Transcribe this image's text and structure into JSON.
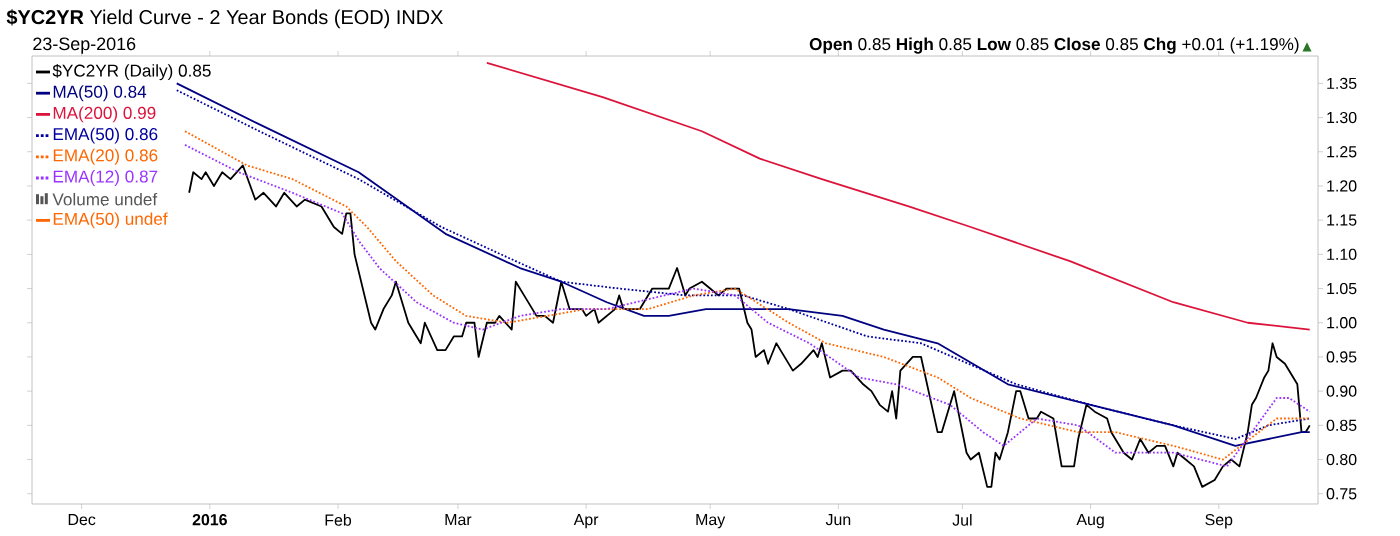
{
  "chart_data": {
    "type": "line",
    "title": "**$YC2YR** Yield Curve - 2 Year Bonds (EOD) INDX",
    "subtitle": "23-Sep-2016",
    "annotations": [
      "**Open** 0.85 **High** 0.85 **Low** 0.85 **Close** 0.85 **Chg** +0.01 (+1.19%)",
      "▲"
    ],
    "xlim": [
      "2015-11-19",
      "2016-09-25"
    ],
    "xticks": [
      {
        "value": "2015-12-01",
        "label": "Dec"
      },
      {
        "value": "2016-01-01",
        "label": "2016"
      },
      {
        "value": "2016-02-01",
        "label": "Feb"
      },
      {
        "value": "2016-03-01",
        "label": "Mar"
      },
      {
        "value": "2016-04-01",
        "label": "Apr"
      },
      {
        "value": "2016-05-01",
        "label": "May"
      },
      {
        "value": "2016-06-01",
        "label": "Jun"
      },
      {
        "value": "2016-07-01",
        "label": "Jul"
      },
      {
        "value": "2016-08-01",
        "label": "Aug"
      },
      {
        "value": "2016-09-01",
        "label": "Sep"
      }
    ],
    "ylim": [
      0.735,
      1.39
    ],
    "yticks": [
      0.75,
      {
        "value": 0.8,
        "label": "0.80"
      },
      0.85,
      {
        "value": 0.9,
        "label": "0.90"
      },
      0.95,
      {
        "value": 1.0,
        "label": "1.00"
      },
      1.05,
      {
        "value": 1.1,
        "label": "1.10"
      },
      1.15,
      {
        "value": 1.2,
        "label": "1.20"
      },
      1.25,
      {
        "value": 1.3,
        "label": "1.30"
      },
      1.35
    ],
    "legend": "top left",
    "grid": false,
    "marker": "none",
    "series": [
      {
        "name": "$YC2YR (Daily) 0.85",
        "color": "#000000",
        "line_style": "solid",
        "x": [
          "2015-12-27",
          "2015-12-28",
          "2015-12-30",
          "2015-12-31",
          "2016-01-02",
          "2016-01-04",
          "2016-01-06",
          "2016-01-09",
          "2016-01-12",
          "2016-01-14",
          "2016-01-17",
          "2016-01-19",
          "2016-01-22",
          "2016-01-24",
          "2016-01-28",
          "2016-01-31",
          "2016-02-02",
          "2016-02-03",
          "2016-02-04",
          "2016-02-05",
          "2016-02-09",
          "2016-02-10",
          "2016-02-12",
          "2016-02-14",
          "2016-02-15",
          "2016-02-17",
          "2016-02-18",
          "2016-02-20",
          "2016-02-21",
          "2016-02-22",
          "2016-02-25",
          "2016-02-27",
          "2016-02-29",
          "2016-03-02",
          "2016-03-03",
          "2016-03-05",
          "2016-03-06",
          "2016-03-08",
          "2016-03-10",
          "2016-03-11",
          "2016-03-14",
          "2016-03-15",
          "2016-03-17",
          "2016-03-20",
          "2016-03-22",
          "2016-03-24",
          "2016-03-26",
          "2016-03-28",
          "2016-03-31",
          "2016-04-01",
          "2016-04-03",
          "2016-04-04",
          "2016-04-08",
          "2016-04-09",
          "2016-04-10",
          "2016-04-14",
          "2016-04-17",
          "2016-04-19",
          "2016-04-21",
          "2016-04-23",
          "2016-04-25",
          "2016-04-26",
          "2016-04-29",
          "2016-05-01",
          "2016-05-03",
          "2016-05-05",
          "2016-05-08",
          "2016-05-10",
          "2016-05-11",
          "2016-05-12",
          "2016-05-14",
          "2016-05-15",
          "2016-05-17",
          "2016-05-18",
          "2016-05-21",
          "2016-05-23",
          "2016-05-26",
          "2016-05-27",
          "2016-05-28",
          "2016-05-30",
          "2016-06-02",
          "2016-06-04",
          "2016-06-07",
          "2016-06-09",
          "2016-06-11",
          "2016-06-13",
          "2016-06-14",
          "2016-06-15",
          "2016-06-16",
          "2016-06-19",
          "2016-06-21",
          "2016-06-25",
          "2016-06-26",
          "2016-06-28",
          "2016-06-29",
          "2016-07-02",
          "2016-07-03",
          "2016-07-05",
          "2016-07-07",
          "2016-07-08",
          "2016-07-09",
          "2016-07-10",
          "2016-07-12",
          "2016-07-14",
          "2016-07-15",
          "2016-07-17",
          "2016-07-19",
          "2016-07-20",
          "2016-07-23",
          "2016-07-25",
          "2016-07-28",
          "2016-07-29",
          "2016-07-31",
          "2016-08-02",
          "2016-08-05",
          "2016-08-06",
          "2016-08-09",
          "2016-08-11",
          "2016-08-13",
          "2016-08-15",
          "2016-08-17",
          "2016-08-19",
          "2016-08-21",
          "2016-08-22",
          "2016-08-24",
          "2016-08-26",
          "2016-08-28",
          "2016-08-31",
          "2016-09-02",
          "2016-09-04",
          "2016-09-06",
          "2016-09-08",
          "2016-09-09",
          "2016-09-10",
          "2016-09-12",
          "2016-09-13",
          "2016-09-14",
          "2016-09-15",
          "2016-09-17",
          "2016-09-20",
          "2016-09-21",
          "2016-09-22",
          "2016-09-23"
        ],
        "values": [
          1.19,
          1.22,
          1.21,
          1.22,
          1.2,
          1.22,
          1.21,
          1.23,
          1.18,
          1.19,
          1.17,
          1.19,
          1.17,
          1.18,
          1.17,
          1.14,
          1.13,
          1.16,
          1.16,
          1.1,
          1.0,
          0.99,
          1.02,
          1.04,
          1.06,
          1.02,
          1.0,
          0.98,
          0.97,
          1.0,
          0.96,
          0.96,
          0.98,
          0.98,
          1.0,
          1.0,
          0.95,
          1.0,
          1.0,
          1.01,
          0.99,
          1.06,
          1.04,
          1.01,
          1.01,
          1.0,
          1.06,
          1.02,
          1.02,
          1.01,
          1.02,
          1.0,
          1.02,
          1.04,
          1.02,
          1.02,
          1.05,
          1.05,
          1.05,
          1.08,
          1.04,
          1.05,
          1.06,
          1.05,
          1.04,
          1.05,
          1.05,
          1.0,
          0.99,
          0.95,
          0.96,
          0.94,
          0.97,
          0.96,
          0.93,
          0.94,
          0.96,
          0.95,
          0.97,
          0.92,
          0.93,
          0.93,
          0.91,
          0.9,
          0.88,
          0.87,
          0.9,
          0.86,
          0.93,
          0.95,
          0.95,
          0.84,
          0.84,
          0.88,
          0.9,
          0.81,
          0.8,
          0.81,
          0.76,
          0.76,
          0.81,
          0.8,
          0.84,
          0.9,
          0.9,
          0.86,
          0.86,
          0.87,
          0.86,
          0.79,
          0.79,
          0.83,
          0.88,
          0.87,
          0.86,
          0.84,
          0.81,
          0.8,
          0.83,
          0.81,
          0.82,
          0.82,
          0.79,
          0.81,
          0.8,
          0.79,
          0.76,
          0.77,
          0.79,
          0.8,
          0.79,
          0.84,
          0.88,
          0.89,
          0.92,
          0.93,
          0.97,
          0.95,
          0.94,
          0.91,
          0.84,
          0.84,
          0.85
        ]
      },
      {
        "name": "MA(50) 0.84",
        "color": "#000080",
        "line_style": "solid",
        "x": [
          "2015-12-24",
          "2016-01-13",
          "2016-02-06",
          "2016-02-27",
          "2016-03-16",
          "2016-03-26",
          "2016-04-06",
          "2016-04-15",
          "2016-04-21",
          "2016-04-30",
          "2016-05-09",
          "2016-05-20",
          "2016-06-02",
          "2016-06-12",
          "2016-06-25",
          "2016-07-12",
          "2016-08-01",
          "2016-08-21",
          "2016-09-05",
          "2016-09-21",
          "2016-09-23"
        ],
        "values": [
          1.35,
          1.29,
          1.22,
          1.13,
          1.08,
          1.06,
          1.03,
          1.01,
          1.01,
          1.02,
          1.02,
          1.02,
          1.01,
          0.99,
          0.97,
          0.91,
          0.88,
          0.85,
          0.82,
          0.84,
          0.84
        ]
      },
      {
        "name": "MA(200) 0.99",
        "color": "#dc143c",
        "line_style": "solid",
        "x": [
          "2016-03-08",
          "2016-04-05",
          "2016-04-29",
          "2016-05-13",
          "2016-05-28",
          "2016-06-18",
          "2016-07-03",
          "2016-07-27",
          "2016-08-21",
          "2016-09-08",
          "2016-09-23"
        ],
        "values": [
          1.38,
          1.33,
          1.28,
          1.24,
          1.21,
          1.17,
          1.14,
          1.09,
          1.03,
          1.0,
          0.99
        ]
      },
      {
        "name": "EMA(50) 0.86",
        "color": "#0000a0",
        "line_style": "dotted",
        "x": [
          "2015-12-24",
          "2016-01-13",
          "2016-02-06",
          "2016-02-26",
          "2016-03-15",
          "2016-03-26",
          "2016-04-09",
          "2016-04-25",
          "2016-05-09",
          "2016-05-20",
          "2016-06-08",
          "2016-06-21",
          "2016-07-14",
          "2016-08-01",
          "2016-08-21",
          "2016-09-05",
          "2016-09-13",
          "2016-09-23"
        ],
        "values": [
          1.34,
          1.28,
          1.21,
          1.14,
          1.09,
          1.06,
          1.05,
          1.04,
          1.04,
          1.02,
          0.98,
          0.97,
          0.91,
          0.88,
          0.85,
          0.83,
          0.85,
          0.86
        ]
      },
      {
        "name": "EMA(20) 0.86",
        "color": "#ff6600",
        "line_style": "dotted",
        "x": [
          "2015-12-26",
          "2016-01-10",
          "2016-01-21",
          "2016-02-03",
          "2016-02-08",
          "2016-02-15",
          "2016-02-24",
          "2016-03-03",
          "2016-03-13",
          "2016-04-01",
          "2016-04-16",
          "2016-04-27",
          "2016-05-07",
          "2016-05-20",
          "2016-05-29",
          "2016-06-12",
          "2016-06-25",
          "2016-07-03",
          "2016-07-15",
          "2016-07-29",
          "2016-08-07",
          "2016-08-21",
          "2016-09-02",
          "2016-09-15",
          "2016-09-23"
        ],
        "values": [
          1.28,
          1.23,
          1.21,
          1.17,
          1.14,
          1.09,
          1.04,
          1.01,
          1.0,
          1.02,
          1.02,
          1.04,
          1.05,
          1.0,
          0.97,
          0.95,
          0.92,
          0.89,
          0.86,
          0.84,
          0.84,
          0.82,
          0.8,
          0.86,
          0.86
        ]
      },
      {
        "name": "EMA(12) 0.87",
        "color": "#9933ff",
        "line_style": "dotted",
        "x": [
          "2015-12-26",
          "2016-01-08",
          "2016-01-21",
          "2016-02-02",
          "2016-02-06",
          "2016-02-11",
          "2016-02-20",
          "2016-02-29",
          "2016-03-07",
          "2016-03-16",
          "2016-03-26",
          "2016-04-06",
          "2016-04-27",
          "2016-05-07",
          "2016-05-15",
          "2016-05-25",
          "2016-06-06",
          "2016-06-15",
          "2016-06-28",
          "2016-07-06",
          "2016-07-11",
          "2016-07-19",
          "2016-07-29",
          "2016-08-07",
          "2016-08-21",
          "2016-09-03",
          "2016-09-15",
          "2016-09-18",
          "2016-09-23"
        ],
        "values": [
          1.26,
          1.22,
          1.19,
          1.16,
          1.12,
          1.08,
          1.03,
          1.0,
          0.99,
          1.01,
          1.02,
          1.02,
          1.05,
          1.04,
          1.0,
          0.97,
          0.92,
          0.91,
          0.88,
          0.84,
          0.82,
          0.86,
          0.85,
          0.81,
          0.81,
          0.79,
          0.89,
          0.89,
          0.87
        ]
      },
      {
        "name": "Volume undef",
        "color": "#555555",
        "type": "bar"
      },
      {
        "name": "EMA(50) undef",
        "color": "#ff6600",
        "line_style": "solid"
      }
    ]
  }
}
